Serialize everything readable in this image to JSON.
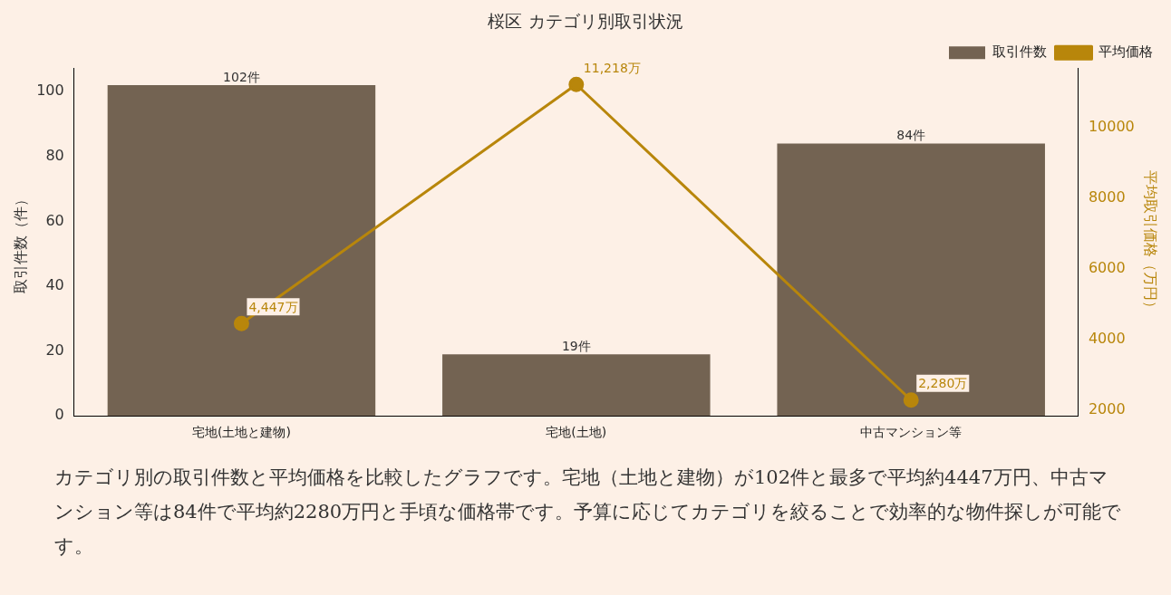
{
  "chart_data": {
    "type": "bar",
    "title": "桜区 カテゴリ別取引状況",
    "categories": [
      "宅地(土地と建物)",
      "宅地(土地)",
      "中古マンション等"
    ],
    "ylabel": "取引件数（件）",
    "y2label": "平均取引価格（万円）",
    "ylim": [
      0,
      107.1
    ],
    "yticks": [
      0,
      20,
      40,
      60,
      80,
      100
    ],
    "y2lim": [
      1833,
      11665
    ],
    "y2ticks": [
      2000,
      4000,
      6000,
      8000,
      10000
    ],
    "series": [
      {
        "name": "取引件数",
        "color": "#736352",
        "values": [
          102,
          19,
          84
        ],
        "value_labels": [
          "102件",
          "19件",
          "84件"
        ]
      },
      {
        "name": "平均価格",
        "type": "line",
        "axis": "y2",
        "color": "#b8860b",
        "values": [
          4447,
          11218,
          2280
        ],
        "value_labels": [
          "4,447万",
          "11,218万",
          "2,280万"
        ]
      }
    ],
    "marker": "circle",
    "legend": "top right",
    "grid": false,
    "annotations": [
      "カテゴリ別の取引件数と平均価格を比較したグラフです。宅地（土地と建物）が102件と最多で平均約4447万円、中古マンション等は84件で平均約2280万円と手頃な価格帯です。予算に応じてカテゴリを絞ることで効率的な物件探しが可能です。"
    ]
  }
}
